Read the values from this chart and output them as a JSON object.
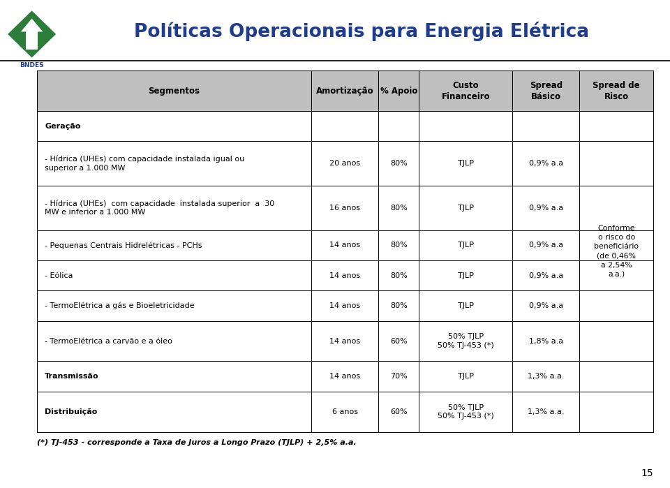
{
  "title": "Políticas Operacionais para Energia Elétrica",
  "title_color": "#1F3D8C",
  "bg_color": "#FFFFFF",
  "header_bg": "#BFBFBF",
  "footnote": "(*) TJ-453 - corresponde a Taxa de Juros a Longo Prazo (TJLP) + 2,5% a.a.",
  "page_number": "15",
  "headers": [
    "Segmentos",
    "Amortização",
    "% Apoio",
    "Custo\nFinanceiro",
    "Spread\nBásico",
    "Spread de\nRisco"
  ],
  "rows": [
    {
      "seg": "Geração",
      "amort": "",
      "apoio": "",
      "custo": "",
      "spread_b": "",
      "bold": true
    },
    {
      "seg": "- Hídrica (UHEs) com capacidade instalada igual ou\nsuperior a 1.000 MW",
      "amort": "20 anos",
      "apoio": "80%",
      "custo": "TJLP",
      "spread_b": "0,9% a.a",
      "bold": false
    },
    {
      "seg": "- Hídrica (UHEs)  com capacidade  instalada superior  a  30\nMW e inferior a 1.000 MW",
      "amort": "16 anos",
      "apoio": "80%",
      "custo": "TJLP",
      "spread_b": "0,9% a.a",
      "bold": false
    },
    {
      "seg": "- Pequenas Centrais Hidrelétricas - PCHs",
      "amort": "14 anos",
      "apoio": "80%",
      "custo": "TJLP",
      "spread_b": "0,9% a.a",
      "bold": false
    },
    {
      "seg": "- Eólica",
      "amort": "14 anos",
      "apoio": "80%",
      "custo": "TJLP",
      "spread_b": "0,9% a.a",
      "bold": false
    },
    {
      "seg": "- TermoElétrica a gás e Bioeletricidade",
      "amort": "14 anos",
      "apoio": "80%",
      "custo": "TJLP",
      "spread_b": "0,9% a.a",
      "bold": false
    },
    {
      "seg": "- TermoElétrica a carvão e a óleo",
      "amort": "14 anos",
      "apoio": "60%",
      "custo": "50% TJLP\n50% TJ-453 (*)",
      "spread_b": "1,8% a.a",
      "bold": false
    },
    {
      "seg": "Transmissão",
      "amort": "14 anos",
      "apoio": "70%",
      "custo": "TJLP",
      "spread_b": "1,3% a.a.",
      "bold": true
    },
    {
      "seg": "Distribuição",
      "amort": "6 anos",
      "apoio": "60%",
      "custo": "50% TJLP\n50% TJ-453 (*)",
      "spread_b": "1,3% a.a.",
      "bold": true
    }
  ],
  "spread_risco_text": "Conforme\no risco do\nbeneficiário\n(de 0,46%\na 2,54%\na.a.)",
  "col_bounds": [
    0.055,
    0.465,
    0.565,
    0.625,
    0.765,
    0.865,
    0.975
  ]
}
